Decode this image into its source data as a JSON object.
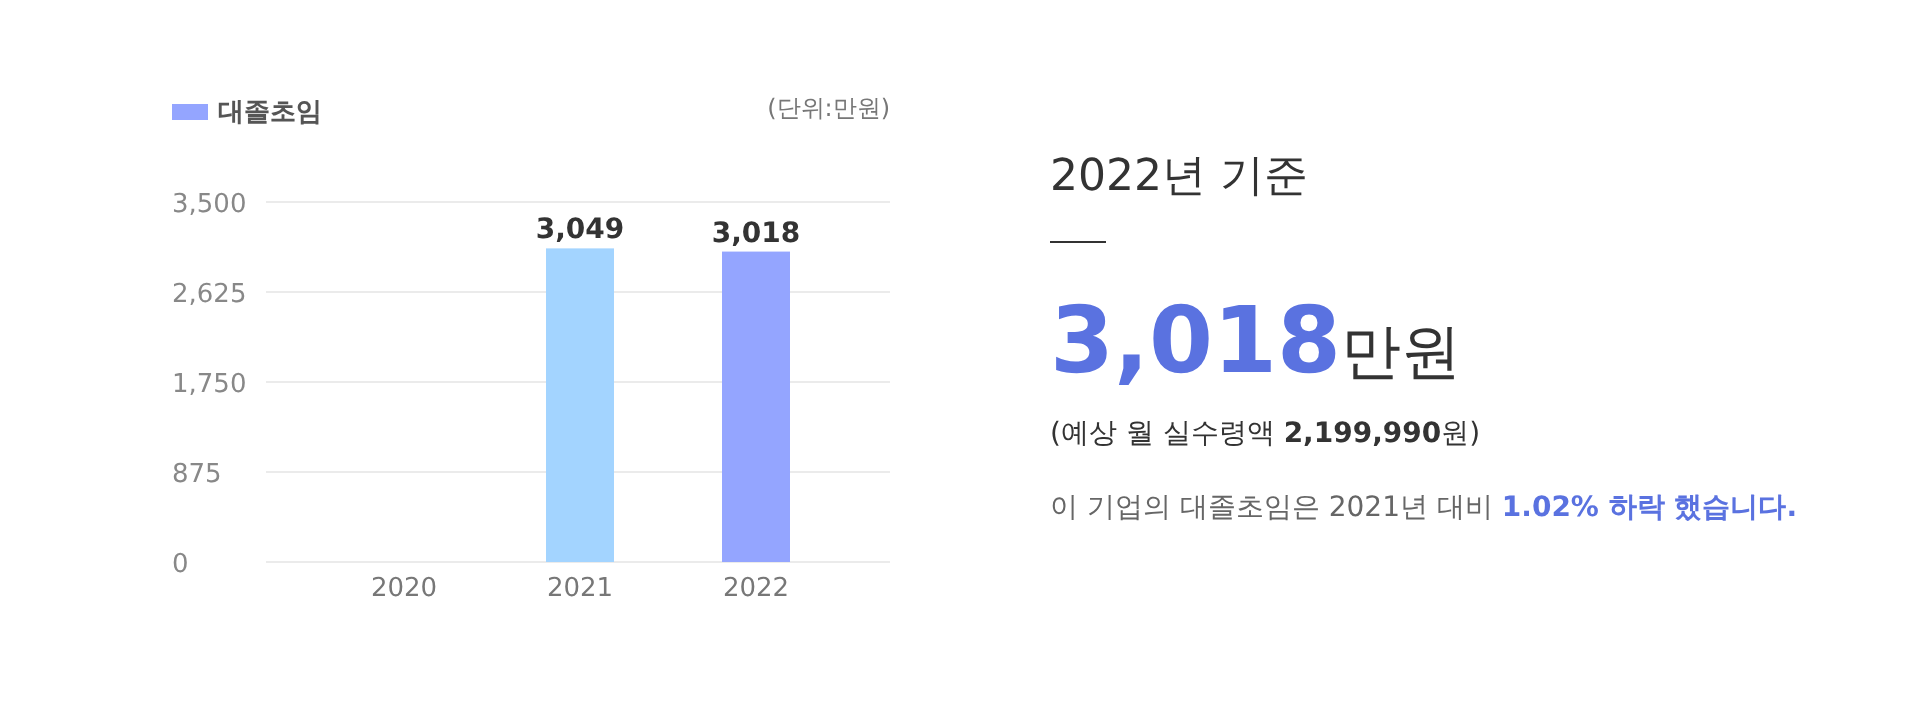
{
  "chart_data": [
    {
      "type": "bar",
      "categories": [
        "2020",
        "2021",
        "2022"
      ],
      "series": [
        {
          "name": "대졸초임",
          "color": "#94a5ff",
          "colors": [
            null,
            "#a3d4ff",
            "#94a5ff"
          ],
          "values": [
            null,
            3049,
            3018
          ],
          "value_labels": [
            null,
            "3,049",
            "3,018"
          ]
        }
      ],
      "ylim": [
        0,
        3500
      ],
      "yticks": [
        0,
        {
          "value": 875,
          "label": "875"
        },
        {
          "value": 1750,
          "label": "1,750"
        },
        {
          "value": 2625,
          "label": "2,625"
        },
        {
          "value": 3500,
          "label": "3,500"
        }
      ],
      "grid": "y",
      "legend": "top left",
      "annotations": [
        "(단위:만원)"
      ]
    },
    {
      "type": "other",
      "title": "2022년 기준",
      "annotations": [
        "**3,018**만원",
        "(예상 월 실수령액 **2,199,990**원)",
        "이 기업의 대졸초임은 2021년 대비 **1.02% 하락 했습니다.**"
      ]
    }
  ]
}
